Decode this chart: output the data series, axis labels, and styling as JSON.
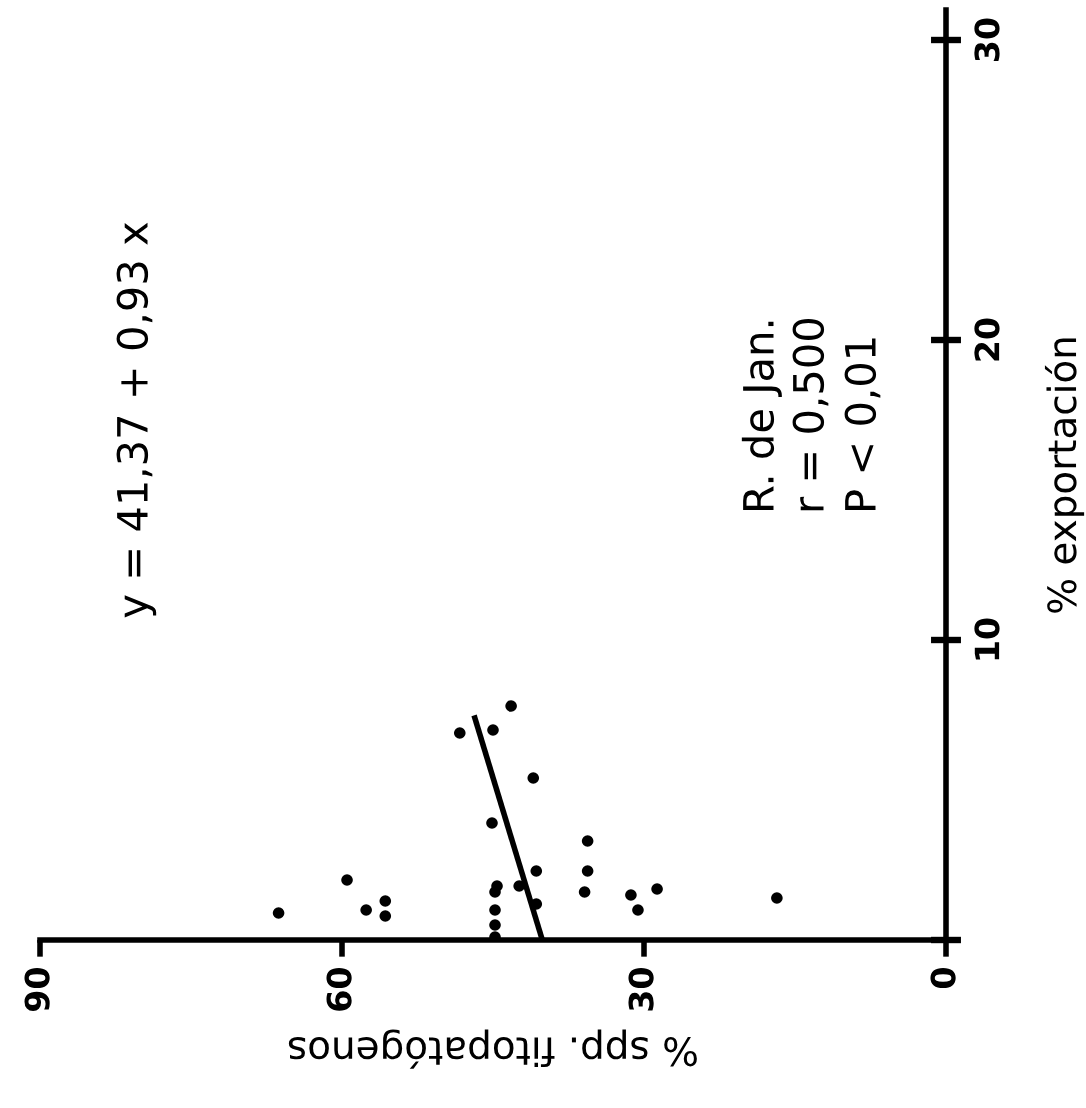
{
  "chart_data": {
    "type": "scatter",
    "xlabel": "% spp. fitopatógenos",
    "ylabel": "% exportación",
    "xlim": [
      90,
      0
    ],
    "xticks": [
      90,
      60,
      30,
      0
    ],
    "ylim": [
      0,
      31
    ],
    "yticks": [
      {
        "value": 0,
        "label": null
      },
      10,
      20,
      30
    ],
    "grid": false,
    "legend": false,
    "annotations": [
      "y = 41,37 + 0,93 x",
      "R. de Jan.",
      "r = 0,500",
      "P < 0,01"
    ],
    "series": [
      {
        "color": "#000000",
        "marker": "circle",
        "x": [
          43.2,
          48.3,
          45.0,
          41.0,
          45.1,
          35.6,
          40.7,
          35.6,
          42.4,
          44.6,
          44.8,
          44.8,
          44.8,
          44.8,
          40.7,
          35.9,
          31.3,
          30.6,
          28.7,
          16.8,
          59.5,
          66.3,
          57.6,
          55.7,
          55.7
        ],
        "values": [
          7.8,
          6.9,
          7.0,
          5.4,
          3.9,
          3.3,
          2.3,
          2.3,
          1.8,
          1.8,
          1.6,
          1.0,
          0.5,
          0.1,
          1.2,
          1.6,
          1.5,
          1.0,
          1.7,
          1.4,
          2.0,
          0.9,
          1.0,
          1.3,
          0.8
        ]
      },
      {
        "type": "line",
        "color": "#000000",
        "line_style": "solid",
        "x": [
          46.8,
          40.1
        ],
        "values": [
          7.4,
          0
        ]
      }
    ]
  }
}
